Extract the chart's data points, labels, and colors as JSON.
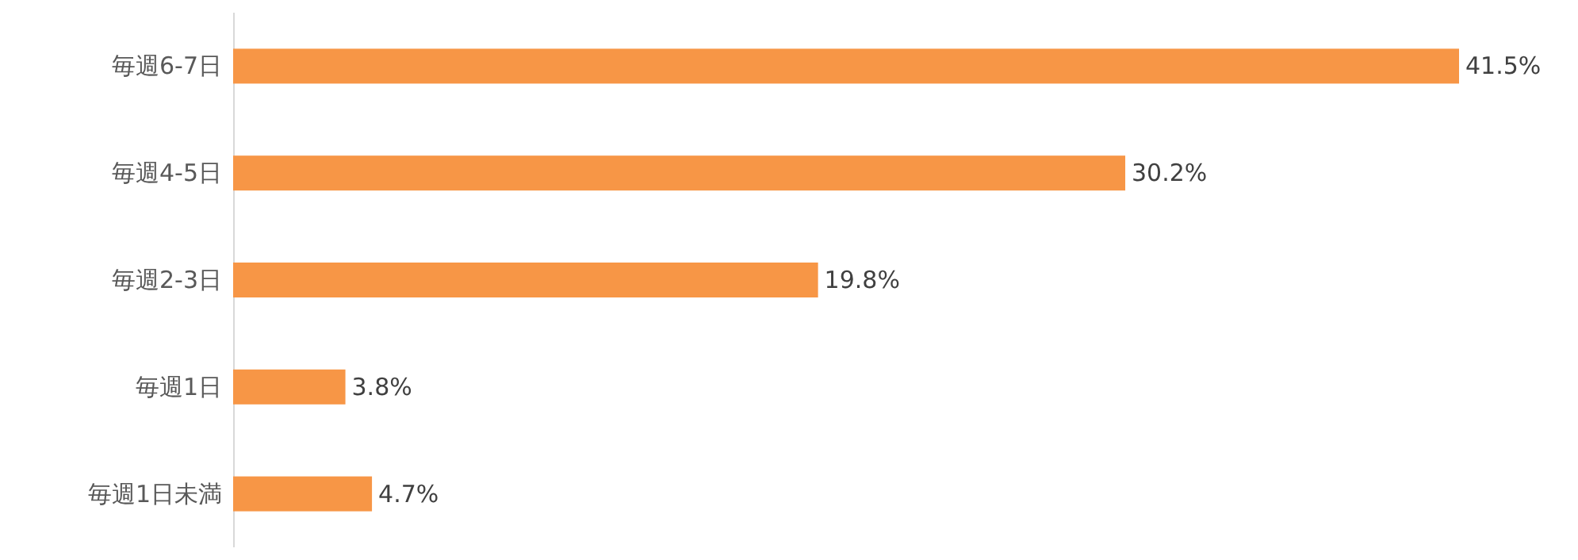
{
  "chart_data": {
    "type": "bar",
    "orientation": "horizontal",
    "categories": [
      "毎週6-7日",
      "毎週4-5日",
      "毎週2-3日",
      "毎週1日",
      "毎週1日未満"
    ],
    "values": [
      41.5,
      30.2,
      19.8,
      3.8,
      4.7
    ],
    "value_labels": [
      "41.5%",
      "30.2%",
      "19.8%",
      "3.8%",
      "4.7%"
    ],
    "color": "#f79646"
  }
}
